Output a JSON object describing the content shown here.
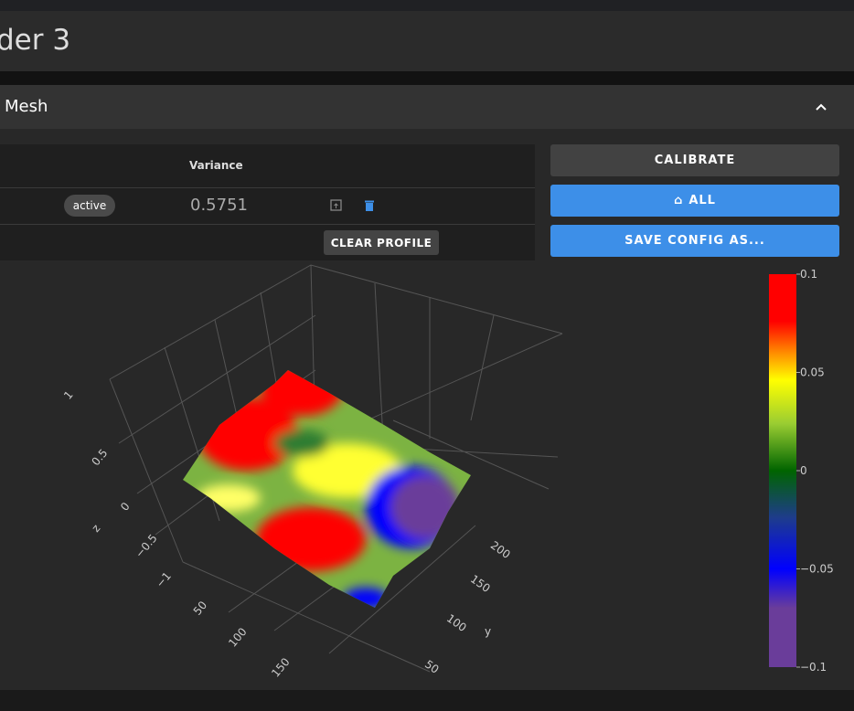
{
  "header": {
    "title": "der 3"
  },
  "panel": {
    "title": "Mesh"
  },
  "table": {
    "columns": [
      "Variance"
    ],
    "rows": [
      {
        "status": "active",
        "variance": 0.5751
      }
    ],
    "clear_button": "CLEAR PROFILE"
  },
  "buttons": [
    "CALIBRATE",
    "ALL",
    "SAVE CONFIG AS..."
  ],
  "plot": {
    "z_axis": {
      "title": "z",
      "ticks": [
        "1",
        "0.5",
        "0",
        "−0.5",
        "−1"
      ]
    },
    "x_axis": {
      "ticks": [
        "50",
        "100",
        "150"
      ]
    },
    "y_axis": {
      "title": "y",
      "ticks": [
        "200",
        "150",
        "100",
        "50"
      ]
    },
    "colorbar": {
      "range": [
        -0.1,
        0.1
      ],
      "ticks": [
        0.1,
        0.05,
        0,
        {
          "value": -0.05,
          "label": "−0.05"
        },
        {
          "value": -0.1,
          "label": "−0.1"
        }
      ]
    }
  }
}
